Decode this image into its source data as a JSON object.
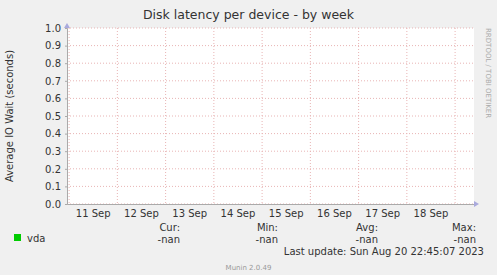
{
  "chart_data": {
    "type": "line",
    "title": "Disk latency per device - by week",
    "y_label": "Average IO Wait (seconds)",
    "categories": [
      "11 Sep",
      "12 Sep",
      "13 Sep",
      "14 Sep",
      "15 Sep",
      "16 Sep",
      "17 Sep",
      "18 Sep"
    ],
    "series": [
      {
        "name": "vda",
        "color": "#00cc00",
        "values": [
          null,
          null,
          null,
          null,
          null,
          null,
          null,
          null
        ]
      }
    ],
    "ylim": [
      0,
      1
    ],
    "yticks": [
      {
        "value": 0,
        "label": "0.0"
      },
      0.1,
      0.2,
      0.3,
      0.4,
      0.5,
      0.6,
      0.7,
      0.8,
      0.9,
      {
        "value": 1,
        "label": "1.0"
      }
    ],
    "grid": true,
    "legend_columns": [
      "Cur:",
      "Min:",
      "Avg:",
      "Max:"
    ],
    "legend_values": [
      "-nan",
      "-nan",
      "-nan",
      "-nan"
    ],
    "last_update": "Last update: Sun Aug 20 22:45:07 2023",
    "generator": "Munin 2.0.49",
    "watermark": "RRDTOOL / TOBI OETIKER"
  }
}
